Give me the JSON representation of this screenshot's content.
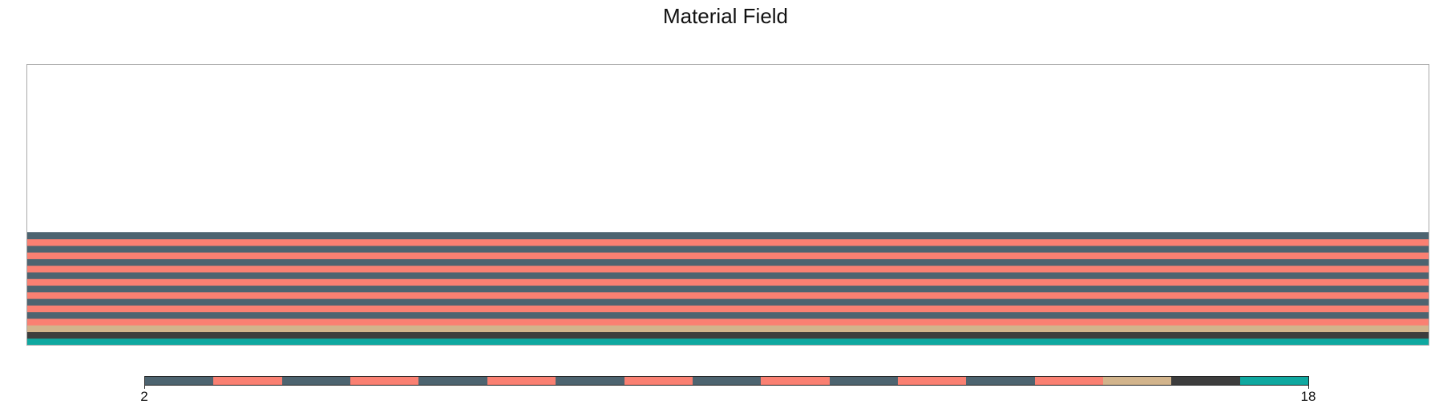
{
  "chart_data": {
    "type": "heatmap",
    "title": "Material Field",
    "description_layers_bottom_to_top": "material id per horizontal layer",
    "layers": [
      18,
      17,
      16,
      15,
      14,
      13,
      12,
      11,
      10,
      9,
      8,
      7,
      6,
      5,
      4,
      3,
      2
    ],
    "fill_fraction": 0.4,
    "colorbar": {
      "min": 2,
      "max": 18,
      "tick_labels": [
        "2",
        "18"
      ],
      "colors": [
        "#4d6470",
        "#fa8072",
        "#4d6470",
        "#fa8072",
        "#4d6470",
        "#fa8072",
        "#4d6470",
        "#fa8072",
        "#4d6470",
        "#fa8072",
        "#4d6470",
        "#fa8072",
        "#4d6470",
        "#fa8072",
        "#d2b48c",
        "#3d3d3d",
        "#0fa8a0"
      ]
    }
  }
}
